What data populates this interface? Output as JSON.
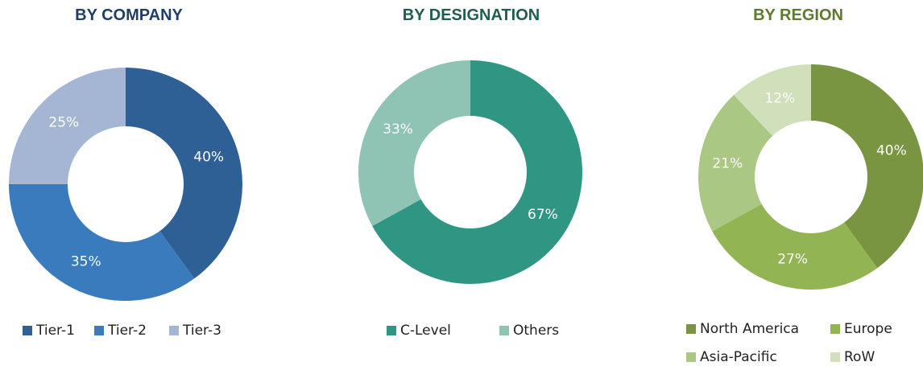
{
  "chart_data": [
    {
      "type": "pie",
      "title": "BY COMPANY",
      "title_color": "#1f3f6a",
      "donut": true,
      "slices": [
        {
          "label": "Tier-1",
          "value": 40,
          "display": "40%",
          "color": "#2e6096"
        },
        {
          "label": "Tier-2",
          "value": 35,
          "display": "35%",
          "color": "#3a7bbd"
        },
        {
          "label": "Tier-3",
          "value": 25,
          "display": "25%",
          "color": "#a5b6d4"
        }
      ]
    },
    {
      "type": "pie",
      "title": "BY DESIGNATION",
      "title_color": "#1f5e4e",
      "donut": true,
      "slices": [
        {
          "label": "C-Level",
          "value": 67,
          "display": "67%",
          "color": "#2f9683"
        },
        {
          "label": "Others",
          "value": 33,
          "display": "33%",
          "color": "#8fc4b4"
        }
      ]
    },
    {
      "type": "pie",
      "title": "BY REGION",
      "title_color": "#5e7a30",
      "donut": true,
      "slices": [
        {
          "label": "North America",
          "value": 40,
          "display": "40%",
          "color": "#7a9541"
        },
        {
          "label": "Europe",
          "value": 27,
          "display": "27%",
          "color": "#93b453"
        },
        {
          "label": "Asia-Pacific",
          "value": 21,
          "display": "21%",
          "color": "#aac784"
        },
        {
          "label": "RoW",
          "value": 12,
          "display": "12%",
          "color": "#d0e0bb"
        }
      ]
    }
  ]
}
